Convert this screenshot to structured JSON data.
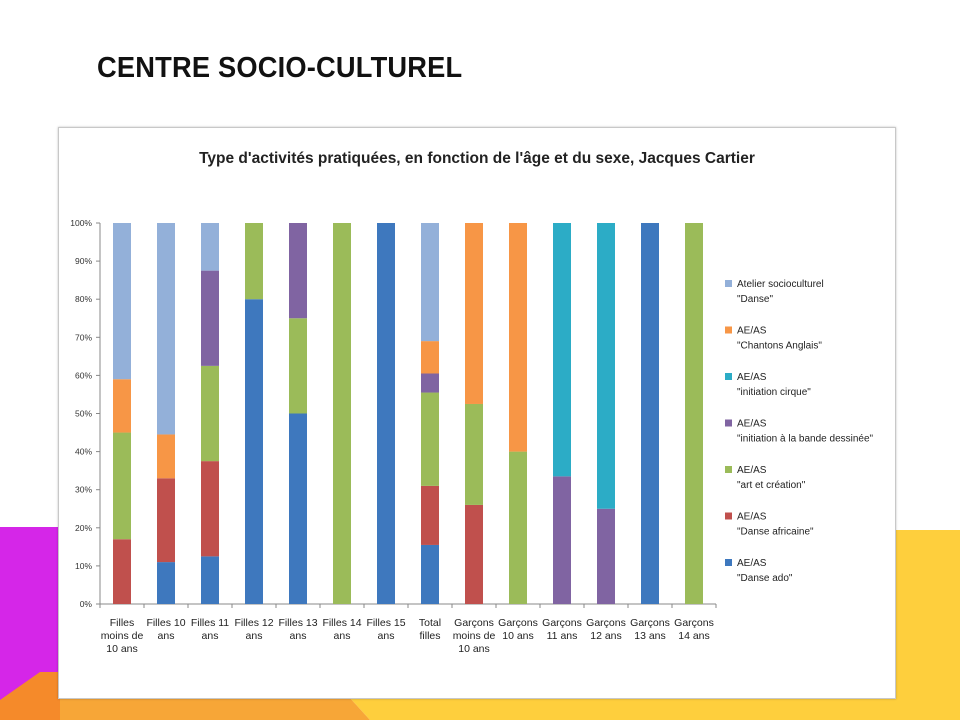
{
  "slide": {
    "title": "CENTRE SOCIO-CULTUREL",
    "colors": {
      "magenta": "#d526e8",
      "yellow": "#fecf3d",
      "orange": "#f7a637",
      "deep_orange": "#f58a2a"
    }
  },
  "chart_data": {
    "type": "bar",
    "stacked": true,
    "title": "Type d'activités pratiquées, en fonction de l'âge et du sexe, Jacques Cartier",
    "xlabel": "",
    "ylabel": "",
    "ylim": [
      0,
      100
    ],
    "y_ticks": [
      "0%",
      "10%",
      "20%",
      "30%",
      "40%",
      "50%",
      "60%",
      "70%",
      "80%",
      "90%",
      "100%"
    ],
    "grid": false,
    "legend_position": "right",
    "categories": [
      [
        "Filles",
        "moins de",
        "10 ans"
      ],
      [
        "Filles 10",
        "ans"
      ],
      [
        "Filles 11",
        "ans"
      ],
      [
        "Filles 12",
        "ans"
      ],
      [
        "Filles 13",
        "ans"
      ],
      [
        "Filles 14",
        "ans"
      ],
      [
        "Filles 15",
        "ans"
      ],
      [
        "Total",
        "filles"
      ],
      [
        "Garçons",
        "moins de",
        "10 ans"
      ],
      [
        "Garçons",
        "10 ans"
      ],
      [
        "Garçons",
        "11 ans"
      ],
      [
        "Garçons",
        "12 ans"
      ],
      [
        "Garçons",
        "13 ans"
      ],
      [
        "Garçons",
        "14 ans"
      ]
    ],
    "series": [
      {
        "name": [
          "AE/AS",
          "\"Danse ado\""
        ],
        "color": "#3e78be",
        "values": [
          0,
          11,
          12.5,
          80,
          50,
          0,
          100,
          15.5,
          0,
          0,
          0,
          0,
          100,
          0
        ]
      },
      {
        "name": [
          "AE/AS",
          "\"Danse africaine\""
        ],
        "color": "#c0504d",
        "values": [
          17,
          22,
          25,
          0,
          0,
          0,
          0,
          15.5,
          26,
          0,
          0,
          0,
          0,
          0
        ]
      },
      {
        "name": [
          "AE/AS",
          "\"art et création\""
        ],
        "color": "#9bbb59",
        "values": [
          28,
          0,
          25,
          20,
          25,
          100,
          0,
          24.5,
          26.5,
          40,
          0,
          0,
          0,
          100
        ]
      },
      {
        "name": [
          "AE/AS",
          "\"initiation à la bande dessinée\""
        ],
        "color": "#8064a2",
        "values": [
          0,
          0,
          25,
          0,
          25,
          0,
          0,
          5,
          0,
          0,
          33.5,
          25,
          0,
          0
        ]
      },
      {
        "name": [
          "AE/AS",
          "\"initiation cirque\""
        ],
        "color": "#2cacc6",
        "values": [
          0,
          0,
          0,
          0,
          0,
          0,
          0,
          0,
          0,
          0,
          66.5,
          75,
          0,
          0
        ]
      },
      {
        "name": [
          "AE/AS",
          "\"Chantons Anglais\""
        ],
        "color": "#f79646",
        "values": [
          14,
          11.5,
          0,
          0,
          0,
          0,
          0,
          8.5,
          47.5,
          60,
          0,
          0,
          0,
          0
        ]
      },
      {
        "name": [
          "Atelier socioculturel",
          "\"Danse\""
        ],
        "color": "#93b0d9",
        "values": [
          41,
          55.5,
          12.5,
          0,
          0,
          0,
          0,
          31,
          0,
          0,
          0,
          0,
          0,
          0
        ]
      }
    ],
    "legend_order": [
      6,
      5,
      4,
      3,
      2,
      1,
      0
    ]
  }
}
